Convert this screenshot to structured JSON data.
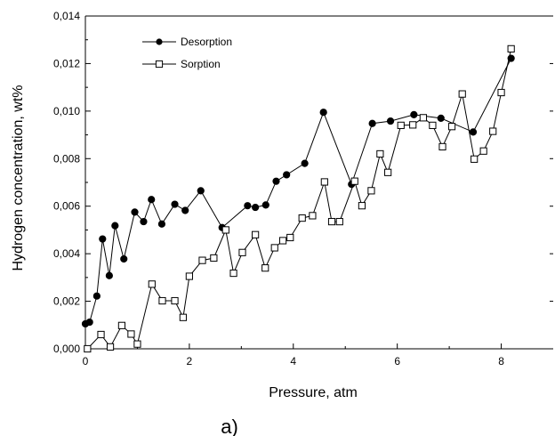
{
  "chart_data": {
    "type": "scatter",
    "title": "",
    "xlabel": "Pressure, atm",
    "ylabel": "Hydrogen concentration, wt%",
    "caption": "a)",
    "xlim": [
      0,
      9
    ],
    "ylim": [
      0,
      0.014
    ],
    "grid": false,
    "legend_position": "top-left",
    "x_ticks": [
      0,
      2,
      4,
      6,
      8
    ],
    "x_tick_labels": [
      "0",
      "2",
      "4",
      "6",
      "8"
    ],
    "y_ticks": [
      0,
      0.002,
      0.004,
      0.006,
      0.008,
      0.01,
      0.012,
      0.014
    ],
    "y_tick_labels": [
      "0,000",
      "0,002",
      "0,004",
      "0,006",
      "0,008",
      "0,010",
      "0,012",
      "0,014"
    ],
    "series": [
      {
        "name": "Desorption",
        "marker": "filled-circle",
        "color": "#000000",
        "points": [
          [
            0.0,
            0.00105
          ],
          [
            0.08,
            0.00112
          ],
          [
            0.22,
            0.00222
          ],
          [
            0.33,
            0.00462
          ],
          [
            0.46,
            0.00308
          ],
          [
            0.57,
            0.00518
          ],
          [
            0.74,
            0.00378
          ],
          [
            0.95,
            0.00575
          ],
          [
            1.12,
            0.00535
          ],
          [
            1.27,
            0.00628
          ],
          [
            1.47,
            0.00525
          ],
          [
            1.72,
            0.00608
          ],
          [
            1.92,
            0.00582
          ],
          [
            2.22,
            0.00665
          ],
          [
            2.63,
            0.0051
          ],
          [
            3.12,
            0.00602
          ],
          [
            3.27,
            0.00595
          ],
          [
            3.47,
            0.00605
          ],
          [
            3.67,
            0.00705
          ],
          [
            3.87,
            0.00732
          ],
          [
            4.22,
            0.0078
          ],
          [
            4.58,
            0.00995
          ],
          [
            5.12,
            0.00692
          ],
          [
            5.52,
            0.00948
          ],
          [
            5.87,
            0.00958
          ],
          [
            6.32,
            0.00985
          ],
          [
            6.84,
            0.0097
          ],
          [
            7.46,
            0.00912
          ],
          [
            8.19,
            0.01222
          ]
        ]
      },
      {
        "name": "Sorption",
        "marker": "open-square",
        "color": "#000000",
        "points": [
          [
            0.04,
            0.0
          ],
          [
            0.3,
            0.0006
          ],
          [
            0.48,
            8e-05
          ],
          [
            0.7,
            0.00098
          ],
          [
            0.88,
            0.00062
          ],
          [
            1.0,
            0.0002
          ],
          [
            1.28,
            0.00272
          ],
          [
            1.48,
            0.00202
          ],
          [
            1.72,
            0.00202
          ],
          [
            1.88,
            0.00132
          ],
          [
            2.0,
            0.00305
          ],
          [
            2.25,
            0.00372
          ],
          [
            2.47,
            0.00382
          ],
          [
            2.7,
            0.005
          ],
          [
            2.85,
            0.00318
          ],
          [
            3.02,
            0.00405
          ],
          [
            3.27,
            0.0048
          ],
          [
            3.46,
            0.0034
          ],
          [
            3.64,
            0.00425
          ],
          [
            3.8,
            0.00455
          ],
          [
            3.94,
            0.00468
          ],
          [
            4.17,
            0.0055
          ],
          [
            4.37,
            0.0056
          ],
          [
            4.6,
            0.00702
          ],
          [
            4.74,
            0.00535
          ],
          [
            4.89,
            0.00535
          ],
          [
            5.18,
            0.00705
          ],
          [
            5.32,
            0.00602
          ],
          [
            5.5,
            0.00665
          ],
          [
            5.67,
            0.0082
          ],
          [
            5.82,
            0.00742
          ],
          [
            6.07,
            0.0094
          ],
          [
            6.3,
            0.00942
          ],
          [
            6.5,
            0.00972
          ],
          [
            6.68,
            0.0094
          ],
          [
            6.87,
            0.0085
          ],
          [
            7.05,
            0.00935
          ],
          [
            7.25,
            0.01072
          ],
          [
            7.48,
            0.00798
          ],
          [
            7.66,
            0.00832
          ],
          [
            7.84,
            0.00915
          ],
          [
            8.0,
            0.01078
          ],
          [
            8.19,
            0.01262
          ]
        ]
      }
    ]
  }
}
